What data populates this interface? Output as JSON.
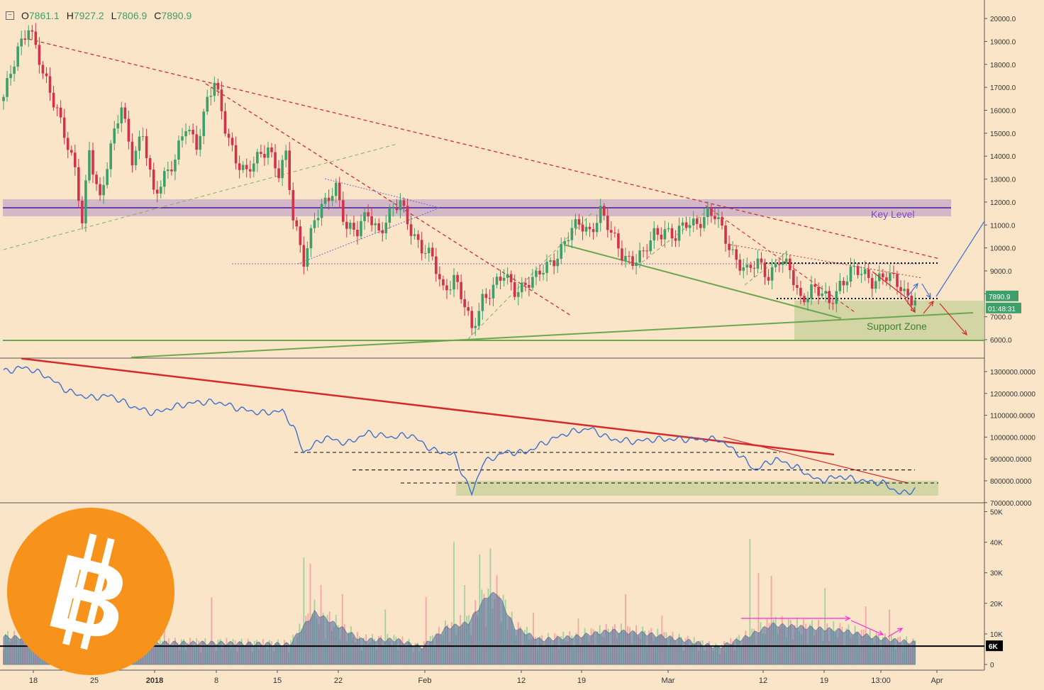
{
  "ohlc": {
    "open_label": "O",
    "open": "7861.1",
    "high_label": "H",
    "high": "7927.2",
    "low_label": "L",
    "low": "7806.9",
    "close_label": "C",
    "close": "7890.9"
  },
  "colors": {
    "background": "#fbe5c8",
    "up": "#3f9f6a",
    "down": "#d0334a",
    "resistance": "#d42a2a",
    "support": "#6aa84f",
    "key_level": "#6d3fa6",
    "obv": "#3d6fcf",
    "volume_ma": "#3a5a8a",
    "arrow_magenta": "#ff2bd6",
    "bitcoin_orange": "#f7931a"
  },
  "labels": {
    "key_level": "Key Level",
    "support_zone": "Support Zone",
    "last_price": "7890.9",
    "countdown": "01:48:31",
    "volume_level": "6K"
  },
  "logo": {
    "name": "bitcoin-logo",
    "glyph": "B"
  },
  "chart_data": [
    {
      "type": "candlestick",
      "title": "",
      "instrument": "BTC",
      "x_ticks": [
        "18",
        "25",
        "2018",
        "8",
        "15",
        "22",
        "Feb",
        "12",
        "19",
        "Mar",
        "12",
        "19",
        "13:00",
        "Apr"
      ],
      "y_ticks": [
        "6000.0",
        "7000.0",
        "8000.0",
        "9000.0",
        "10000.0",
        "11000.0",
        "12000.0",
        "13000.0",
        "14000.0",
        "15000.0",
        "16000.0",
        "17000.0",
        "18000.0",
        "19000.0",
        "20000.0"
      ],
      "ylim": [
        5600,
        20400
      ],
      "key_level": 11750,
      "support_zone": [
        6000,
        7700
      ],
      "last_price": 7890.9,
      "close_path": [
        {
          "d": 0,
          "close": 16400
        },
        {
          "d": 4,
          "close": 18800
        },
        {
          "d": 7,
          "close": 19700
        },
        {
          "d": 11,
          "close": 17500
        },
        {
          "d": 15,
          "close": 16200
        },
        {
          "d": 20,
          "close": 13200
        },
        {
          "d": 22,
          "close": 11100
        },
        {
          "d": 24,
          "close": 14400
        },
        {
          "d": 27,
          "close": 12100
        },
        {
          "d": 30,
          "close": 14200
        },
        {
          "d": 33,
          "close": 16300
        },
        {
          "d": 36,
          "close": 14000
        },
        {
          "d": 39,
          "close": 14800
        },
        {
          "d": 42,
          "close": 12300
        },
        {
          "d": 45,
          "close": 13300
        },
        {
          "d": 48,
          "close": 13800
        },
        {
          "d": 51,
          "close": 15200
        },
        {
          "d": 54,
          "close": 14600
        },
        {
          "d": 57,
          "close": 16500
        },
        {
          "d": 59,
          "close": 17100
        },
        {
          "d": 62,
          "close": 15200
        },
        {
          "d": 65,
          "close": 14000
        },
        {
          "d": 68,
          "close": 13200
        },
        {
          "d": 71,
          "close": 13800
        },
        {
          "d": 74,
          "close": 14500
        },
        {
          "d": 77,
          "close": 13300
        },
        {
          "d": 79,
          "close": 13900
        },
        {
          "d": 81,
          "close": 11200
        },
        {
          "d": 84,
          "close": 9600
        },
        {
          "d": 87,
          "close": 11300
        },
        {
          "d": 90,
          "close": 11800
        },
        {
          "d": 93,
          "close": 12700
        },
        {
          "d": 96,
          "close": 11000
        },
        {
          "d": 99,
          "close": 10600
        },
        {
          "d": 102,
          "close": 11500
        },
        {
          "d": 105,
          "close": 10800
        },
        {
          "d": 108,
          "close": 11400
        },
        {
          "d": 111,
          "close": 11900
        },
        {
          "d": 114,
          "close": 10900
        },
        {
          "d": 117,
          "close": 10000
        },
        {
          "d": 120,
          "close": 9400
        },
        {
          "d": 123,
          "close": 8200
        },
        {
          "d": 126,
          "close": 8800
        },
        {
          "d": 129,
          "close": 7400
        },
        {
          "d": 131,
          "close": 6300
        },
        {
          "d": 134,
          "close": 7900
        },
        {
          "d": 137,
          "close": 8300
        },
        {
          "d": 140,
          "close": 8700
        },
        {
          "d": 143,
          "close": 8200
        },
        {
          "d": 146,
          "close": 8500
        },
        {
          "d": 149,
          "close": 8600
        },
        {
          "d": 152,
          "close": 9200
        },
        {
          "d": 155,
          "close": 9800
        },
        {
          "d": 158,
          "close": 10500
        },
        {
          "d": 161,
          "close": 11000
        },
        {
          "d": 164,
          "close": 10800
        },
        {
          "d": 167,
          "close": 11600
        },
        {
          "d": 170,
          "close": 10500
        },
        {
          "d": 173,
          "close": 9800
        },
        {
          "d": 176,
          "close": 9500
        },
        {
          "d": 179,
          "close": 9600
        },
        {
          "d": 182,
          "close": 10600
        },
        {
          "d": 185,
          "close": 10900
        },
        {
          "d": 188,
          "close": 10400
        },
        {
          "d": 191,
          "close": 11000
        },
        {
          "d": 194,
          "close": 11200
        },
        {
          "d": 197,
          "close": 11500
        },
        {
          "d": 199,
          "close": 11300
        },
        {
          "d": 202,
          "close": 10400
        },
        {
          "d": 205,
          "close": 9600
        },
        {
          "d": 208,
          "close": 8900
        },
        {
          "d": 211,
          "close": 9300
        },
        {
          "d": 214,
          "close": 8900
        },
        {
          "d": 217,
          "close": 9500
        },
        {
          "d": 220,
          "close": 8900
        },
        {
          "d": 223,
          "close": 7800
        },
        {
          "d": 226,
          "close": 8300
        },
        {
          "d": 229,
          "close": 7900
        },
        {
          "d": 231,
          "close": 7500
        },
        {
          "d": 234,
          "close": 8500
        },
        {
          "d": 237,
          "close": 9000
        },
        {
          "d": 240,
          "close": 8800
        },
        {
          "d": 243,
          "close": 8600
        },
        {
          "d": 246,
          "close": 8900
        },
        {
          "d": 249,
          "close": 8500
        },
        {
          "d": 252,
          "close": 8000
        },
        {
          "d": 255,
          "close": 7890
        }
      ]
    },
    {
      "type": "line",
      "title": "",
      "y_ticks": [
        "700000.0000",
        "800000.0000",
        "900000.0000",
        "1000000.0000",
        "1100000.0000",
        "1200000.0000",
        "1300000.0000"
      ],
      "ylim": [
        690000,
        1360000
      ],
      "series": [
        {
          "values": [
            {
              "d": 0,
              "v": 1300000
            },
            {
              "d": 6,
              "v": 1320000
            },
            {
              "d": 12,
              "v": 1280000
            },
            {
              "d": 18,
              "v": 1210000
            },
            {
              "d": 24,
              "v": 1180000
            },
            {
              "d": 30,
              "v": 1190000
            },
            {
              "d": 36,
              "v": 1140000
            },
            {
              "d": 42,
              "v": 1110000
            },
            {
              "d": 48,
              "v": 1140000
            },
            {
              "d": 54,
              "v": 1160000
            },
            {
              "d": 60,
              "v": 1160000
            },
            {
              "d": 66,
              "v": 1130000
            },
            {
              "d": 72,
              "v": 1110000
            },
            {
              "d": 78,
              "v": 1120000
            },
            {
              "d": 81,
              "v": 1050000
            },
            {
              "d": 84,
              "v": 930000
            },
            {
              "d": 90,
              "v": 1000000
            },
            {
              "d": 96,
              "v": 970000
            },
            {
              "d": 102,
              "v": 1020000
            },
            {
              "d": 108,
              "v": 1000000
            },
            {
              "d": 114,
              "v": 1010000
            },
            {
              "d": 120,
              "v": 940000
            },
            {
              "d": 126,
              "v": 920000
            },
            {
              "d": 131,
              "v": 740000
            },
            {
              "d": 134,
              "v": 880000
            },
            {
              "d": 140,
              "v": 930000
            },
            {
              "d": 146,
              "v": 930000
            },
            {
              "d": 152,
              "v": 980000
            },
            {
              "d": 158,
              "v": 1020000
            },
            {
              "d": 164,
              "v": 1040000
            },
            {
              "d": 170,
              "v": 990000
            },
            {
              "d": 176,
              "v": 980000
            },
            {
              "d": 182,
              "v": 990000
            },
            {
              "d": 188,
              "v": 990000
            },
            {
              "d": 194,
              "v": 990000
            },
            {
              "d": 200,
              "v": 990000
            },
            {
              "d": 206,
              "v": 920000
            },
            {
              "d": 210,
              "v": 850000
            },
            {
              "d": 216,
              "v": 900000
            },
            {
              "d": 222,
              "v": 860000
            },
            {
              "d": 228,
              "v": 800000
            },
            {
              "d": 234,
              "v": 820000
            },
            {
              "d": 240,
              "v": 800000
            },
            {
              "d": 246,
              "v": 790000
            },
            {
              "d": 251,
              "v": 740000
            },
            {
              "d": 255,
              "v": 760000
            }
          ]
        }
      ]
    },
    {
      "type": "bar",
      "title": "",
      "y_ticks": [
        "0",
        "10K",
        "20K",
        "30K",
        "40K",
        "50K"
      ],
      "ylim": [
        0,
        50000
      ],
      "reference_level": 6000,
      "volume_ma": [
        {
          "d": 0,
          "v": 9000
        },
        {
          "d": 20,
          "v": 8000
        },
        {
          "d": 40,
          "v": 7000
        },
        {
          "d": 60,
          "v": 7000
        },
        {
          "d": 80,
          "v": 6500
        },
        {
          "d": 87,
          "v": 17000
        },
        {
          "d": 93,
          "v": 13000
        },
        {
          "d": 100,
          "v": 8000
        },
        {
          "d": 110,
          "v": 8000
        },
        {
          "d": 117,
          "v": 5500
        },
        {
          "d": 124,
          "v": 12000
        },
        {
          "d": 130,
          "v": 13500
        },
        {
          "d": 135,
          "v": 22000
        },
        {
          "d": 138,
          "v": 23500
        },
        {
          "d": 143,
          "v": 12000
        },
        {
          "d": 150,
          "v": 8000
        },
        {
          "d": 160,
          "v": 9000
        },
        {
          "d": 170,
          "v": 11000
        },
        {
          "d": 180,
          "v": 10000
        },
        {
          "d": 190,
          "v": 8000
        },
        {
          "d": 200,
          "v": 5500
        },
        {
          "d": 208,
          "v": 9000
        },
        {
          "d": 215,
          "v": 13000
        },
        {
          "d": 225,
          "v": 12000
        },
        {
          "d": 235,
          "v": 11000
        },
        {
          "d": 245,
          "v": 8500
        },
        {
          "d": 255,
          "v": 7000
        }
      ],
      "volume_spikes": [
        {
          "d": 9,
          "v": 20000
        },
        {
          "d": 38,
          "v": 22000
        },
        {
          "d": 45,
          "v": 17000
        },
        {
          "d": 58,
          "v": 22000
        },
        {
          "d": 84,
          "v": 35000
        },
        {
          "d": 86,
          "v": 33000
        },
        {
          "d": 89,
          "v": 26000
        },
        {
          "d": 95,
          "v": 23000
        },
        {
          "d": 107,
          "v": 18000
        },
        {
          "d": 118,
          "v": 22000
        },
        {
          "d": 126,
          "v": 40000
        },
        {
          "d": 129,
          "v": 26000
        },
        {
          "d": 133,
          "v": 36000
        },
        {
          "d": 136,
          "v": 38000
        },
        {
          "d": 148,
          "v": 17000
        },
        {
          "d": 161,
          "v": 15000
        },
        {
          "d": 174,
          "v": 23000
        },
        {
          "d": 184,
          "v": 16000
        },
        {
          "d": 209,
          "v": 41000
        },
        {
          "d": 211,
          "v": 30000
        },
        {
          "d": 215,
          "v": 29000
        },
        {
          "d": 230,
          "v": 25000
        },
        {
          "d": 241,
          "v": 19000
        },
        {
          "d": 248,
          "v": 18000
        }
      ]
    }
  ]
}
